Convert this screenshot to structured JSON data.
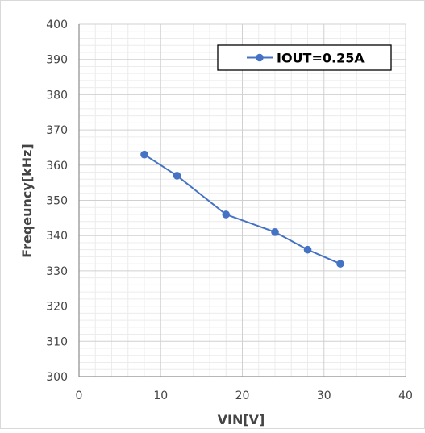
{
  "chart_data": {
    "type": "line",
    "xlabel": "VIN[V]",
    "ylabel": "Freqeuncy[kHz]",
    "xlim": [
      0,
      40
    ],
    "ylim": [
      300,
      400
    ],
    "x_ticks": [
      0,
      10,
      20,
      30,
      40
    ],
    "y_ticks": [
      300,
      310,
      320,
      330,
      340,
      350,
      360,
      370,
      380,
      390,
      400
    ],
    "x_minor_step": 2,
    "y_minor_step": 2,
    "grid": true,
    "legend_position": "top-right",
    "series": [
      {
        "name": "IOUT=0.25A",
        "color": "#4472c4",
        "marker": "circle",
        "x": [
          8,
          12,
          18,
          24,
          28,
          32
        ],
        "y": [
          363,
          357,
          346,
          341,
          336,
          332
        ]
      }
    ]
  }
}
